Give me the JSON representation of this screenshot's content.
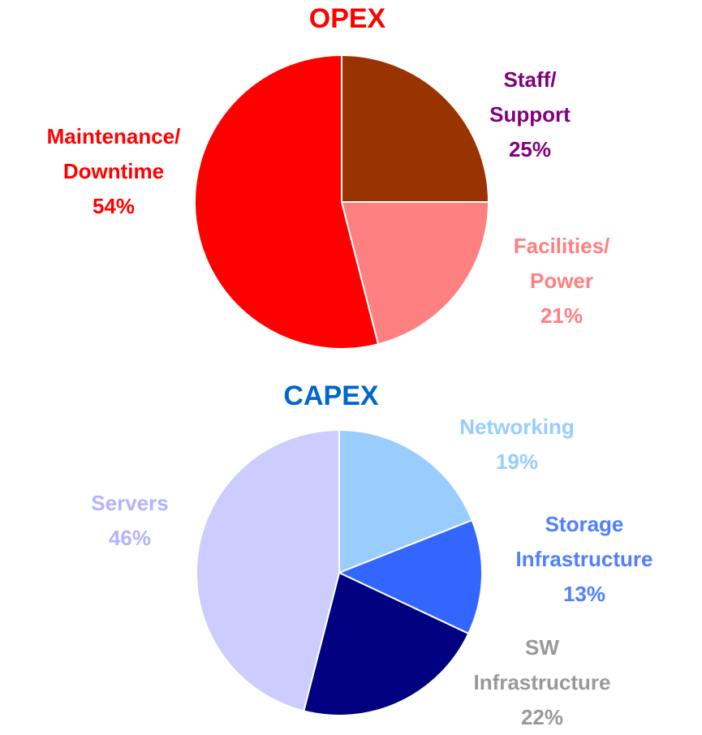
{
  "chart_data": [
    {
      "type": "pie",
      "title": "OPEX",
      "title_color": "#ff0000",
      "categories": [
        "Staff/ Support",
        "Facilities/ Power",
        "Maintenance/ Downtime"
      ],
      "values": [
        25,
        21,
        54
      ],
      "value_labels": [
        "25%",
        "21%",
        "54%"
      ],
      "colors": [
        "#993300",
        "#ff8080",
        "#ff0000"
      ],
      "label_colors": [
        "#800080",
        "#ff8080",
        "#ff0000"
      ]
    },
    {
      "type": "pie",
      "title": "CAPEX",
      "title_color": "#0066cc",
      "categories": [
        "Networking",
        "Storage Infrastructure",
        "SW Infrastructure",
        "Servers"
      ],
      "values": [
        19,
        13,
        22,
        46
      ],
      "value_labels": [
        "19%",
        "13%",
        "22%",
        "46%"
      ],
      "colors": [
        "#99ccff",
        "#3366ff",
        "#000080",
        "#ccccff"
      ],
      "label_colors": [
        "#99ccff",
        "#5080ff",
        "#999999",
        "#b3b3ff"
      ]
    }
  ]
}
